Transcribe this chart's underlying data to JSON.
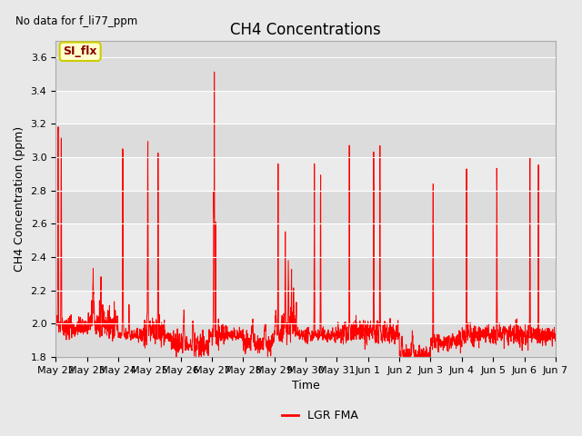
{
  "title": "CH4 Concentrations",
  "xlabel": "Time",
  "ylabel": "CH4 Concentration (ppm)",
  "top_left_text": "No data for f_li77_ppm",
  "legend_label": "LGR FMA",
  "legend_color": "#FF0000",
  "line_color": "#FF0000",
  "line_width": 0.7,
  "ylim": [
    1.8,
    3.7
  ],
  "yticks": [
    1.8,
    2.0,
    2.2,
    2.4,
    2.6,
    2.8,
    3.0,
    3.2,
    3.4,
    3.6
  ],
  "xtick_labels": [
    "May 22",
    "May 23",
    "May 24",
    "May 25",
    "May 26",
    "May 27",
    "May 28",
    "May 29",
    "May 30",
    "May 31",
    "Jun 1",
    "Jun 2",
    "Jun 3",
    "Jun 4",
    "Jun 5",
    "Jun 6",
    "Jun 7"
  ],
  "bg_color": "#E8E8E8",
  "plot_bg_color": "#E0E0E0",
  "title_fontsize": 12,
  "label_fontsize": 9,
  "tick_fontsize": 8,
  "annotation_box_text": "SI_flx",
  "annotation_box_facecolor": "#FFFFCC",
  "annotation_box_edgecolor": "#CCCC00"
}
